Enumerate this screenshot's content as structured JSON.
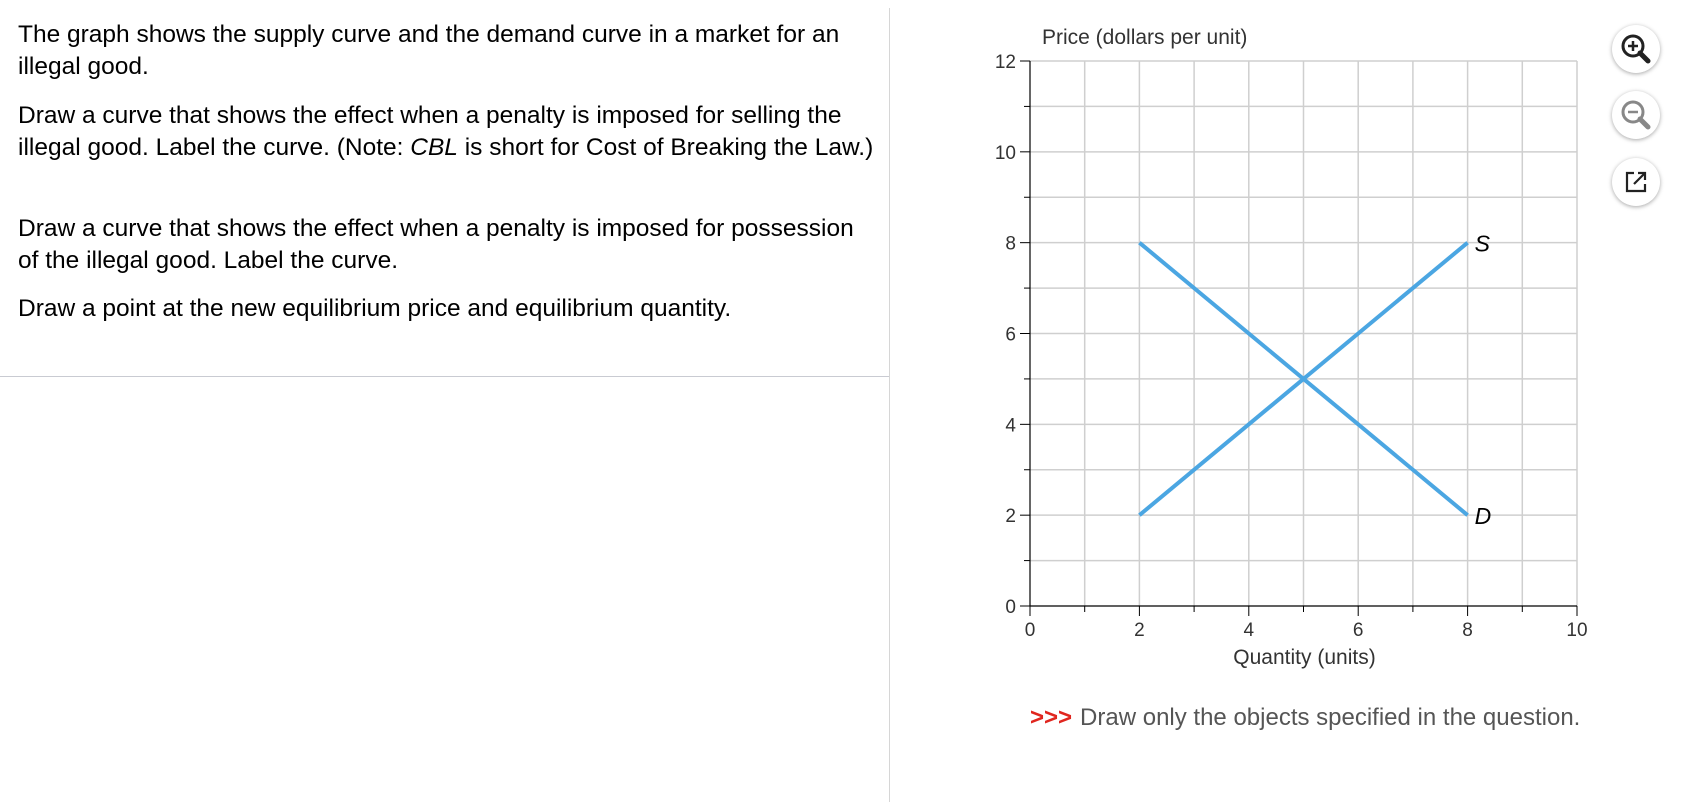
{
  "question": {
    "para1": "The graph shows the supply curve and the demand curve in a market for an illegal good.",
    "para2_pre": "Draw a curve that shows the effect when a penalty is imposed for selling the illegal good. Label the curve. (Note: ",
    "para2_em": "CBL",
    "para2_post": " is short for Cost of Breaking the Law.)",
    "para3": "Draw a curve that shows the effect when a penalty is imposed for possession of the illegal good. Label the curve.",
    "para4": "Draw a point at the new equilibrium price and equilibrium quantity."
  },
  "toolbar": {
    "zoom_in_icon": "zoom-in-icon",
    "zoom_out_icon": "zoom-out-icon",
    "external_icon": "open-external-icon"
  },
  "note": {
    "arrows": ">>>",
    "text": "Draw only the objects specified in the question."
  },
  "colors": {
    "curve": "#4ba6e2",
    "grid": "#cfcfcf",
    "note_arrows": "#e0261f"
  },
  "chart_data": {
    "type": "line",
    "ylabel": "Price (dollars per unit)",
    "xlabel": "Quantity (units)",
    "xlim": [
      0,
      10
    ],
    "ylim": [
      0,
      12
    ],
    "x_ticks": [
      "0",
      "2",
      "4",
      "6",
      "8",
      "10"
    ],
    "y_ticks": [
      "0",
      "2",
      "4",
      "6",
      "8",
      "10",
      "12"
    ],
    "grid": true,
    "series": [
      {
        "name": "S",
        "x": [
          2,
          8
        ],
        "y": [
          2,
          8
        ]
      },
      {
        "name": "D",
        "x": [
          2,
          8
        ],
        "y": [
          8,
          2
        ]
      }
    ]
  }
}
